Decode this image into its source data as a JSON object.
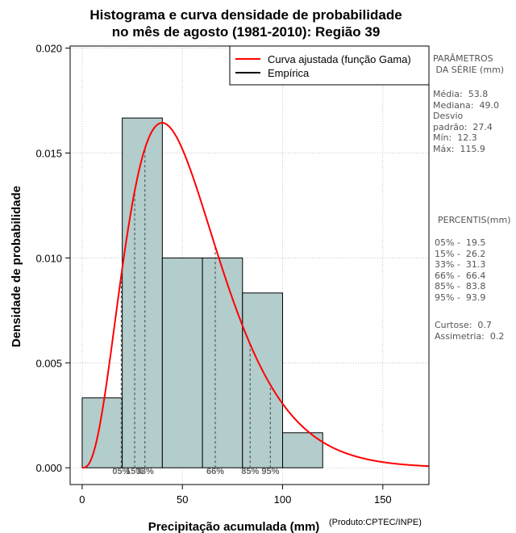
{
  "chart_data": {
    "type": "histogram",
    "title": [
      "Histograma e curva densidade de probabilidade",
      "no mês de agosto (1981-2010): Região 39"
    ],
    "xlabel": "Precipitação acumulada (mm)",
    "ylabel": "Densidade de probabilidade",
    "credit": "(Produto:CPTEC/INPE)",
    "xlim": [
      -6,
      173
    ],
    "ylim": [
      -0.0008,
      0.0201
    ],
    "x_ticks": [
      0,
      50,
      100,
      150
    ],
    "x_tick_labels": [
      "0",
      "50",
      "100",
      "150"
    ],
    "y_ticks": [
      0.0,
      0.005,
      0.01,
      0.015,
      0.02
    ],
    "y_tick_labels": [
      "0.000",
      "0.005",
      "0.010",
      "0.015",
      "0.020"
    ],
    "grid": true,
    "bins": [
      {
        "from": 0,
        "to": 20,
        "density": 0.00333
      },
      {
        "from": 20,
        "to": 40,
        "density": 0.01667
      },
      {
        "from": 40,
        "to": 60,
        "density": 0.01
      },
      {
        "from": 60,
        "to": 80,
        "density": 0.01
      },
      {
        "from": 80,
        "to": 100,
        "density": 0.00833
      },
      {
        "from": 100,
        "to": 120,
        "density": 0.00167
      }
    ],
    "bar_color": "#b3cccc",
    "curve": {
      "name": "Curva ajustada (função Gama)",
      "color": "#ff0000",
      "shape": 3.86,
      "scale": 13.94
    },
    "legend": {
      "position": "top-right",
      "entries": [
        {
          "label": "Curva ajustada (função Gama)",
          "color": "#ff0000"
        },
        {
          "label": "Empírica",
          "color": "#000000"
        }
      ]
    },
    "percentile_lines": [
      {
        "x": 19.5,
        "label": "05%"
      },
      {
        "x": 26.2,
        "label": "15%"
      },
      {
        "x": 31.3,
        "label": "33%"
      },
      {
        "x": 66.4,
        "label": "66%"
      },
      {
        "x": 83.8,
        "label": "85%"
      },
      {
        "x": 93.9,
        "label": "95%"
      }
    ]
  },
  "side_panel": {
    "params_title": "PARÂMETROS\n DA SÉRIE (mm)",
    "params_text": "Média:  53.8\nMediana:  49.0\nDesvio\npadrão:  27.4\nMín:  12.3\nMáx:  115.9",
    "percentis_title": "PERCENTIS(mm)",
    "percentis_text": "05% -  19.5\n15% -  26.2\n33% -  31.3\n66% -  66.4\n85% -  83.8\n95% -  93.9",
    "extra_text": "Curtose:  0.7\nAssimetria:  0.2"
  }
}
